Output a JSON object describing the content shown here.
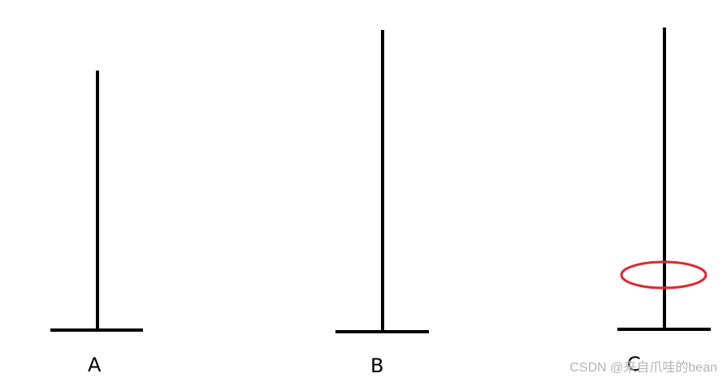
{
  "pegs": [
    {
      "label": "A"
    },
    {
      "label": "B"
    },
    {
      "label": "C"
    }
  ],
  "ring": {
    "on_peg": "C",
    "color": "#e0262f"
  },
  "watermark": {
    "text": "CSDN @来自爪哇的bean"
  }
}
